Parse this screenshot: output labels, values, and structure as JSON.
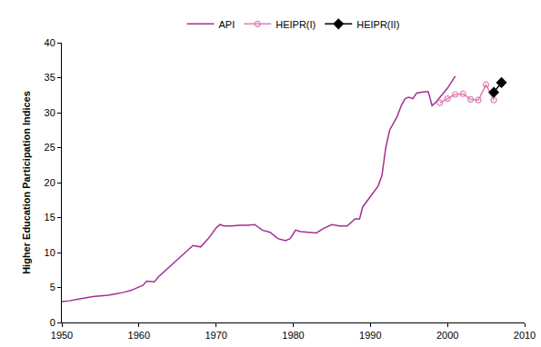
{
  "chart_data": {
    "type": "line",
    "y_label": "Higher Education Participation Indices",
    "xlim": [
      1950,
      2010
    ],
    "xticks": [
      1950,
      1960,
      1970,
      1980,
      1990,
      2000,
      2010
    ],
    "ylim": [
      0,
      40
    ],
    "yticks": [
      0,
      5,
      10,
      15,
      20,
      25,
      30,
      35,
      40
    ],
    "grid": false,
    "legend": "top",
    "series": [
      {
        "name": "API",
        "color": "#a3308f",
        "line_style": "solid",
        "marker": "none",
        "x": [
          1950,
          1951,
          1952,
          1953,
          1954,
          1955,
          1956,
          1957,
          1958,
          1959,
          1960,
          1960.5,
          1961,
          1962,
          1962.5,
          1963,
          1964,
          1965,
          1966,
          1967,
          1968,
          1969,
          1970,
          1970.5,
          1971,
          1972,
          1973,
          1974,
          1975,
          1976,
          1977,
          1978,
          1979,
          1979.6,
          1980.3,
          1981,
          1982,
          1983,
          1984,
          1985,
          1986,
          1987,
          1988,
          1988.6,
          1989,
          1990,
          1991,
          1991.5,
          1992,
          1992.5,
          1993,
          1993.5,
          1994,
          1994.5,
          1995,
          1995.5,
          1996,
          1997,
          1997.5,
          1998,
          1998.5,
          1999,
          2000,
          2001
        ],
        "values": [
          3.0,
          3.1,
          3.3,
          3.5,
          3.7,
          3.8,
          3.9,
          4.1,
          4.3,
          4.6,
          5.0,
          5.3,
          5.9,
          5.8,
          6.5,
          7.0,
          8.0,
          9.0,
          10.0,
          11.0,
          10.8,
          12.0,
          13.5,
          14.0,
          13.8,
          13.8,
          13.9,
          13.9,
          14.0,
          13.2,
          12.9,
          12.0,
          11.7,
          12.0,
          13.2,
          13.0,
          12.9,
          12.8,
          13.5,
          14.0,
          13.8,
          13.8,
          14.8,
          14.8,
          16.5,
          18.0,
          19.5,
          21.0,
          25.0,
          27.5,
          28.5,
          29.5,
          31.0,
          32.0,
          32.2,
          32.0,
          32.8,
          33.0,
          33.0,
          31.0,
          31.5,
          32.2,
          33.5,
          35.2
        ]
      },
      {
        "name": "HEIPR(I)",
        "color": "#e07fb4",
        "line_style": "solid",
        "marker": "circle-open",
        "x": [
          1999,
          2000,
          2001,
          2002,
          2003,
          2004,
          2005,
          2006
        ],
        "values": [
          31.4,
          32.0,
          32.6,
          32.7,
          31.9,
          31.8,
          34.0,
          31.8
        ]
      },
      {
        "name": "HEIPR(II)",
        "color": "#000000",
        "line_style": "solid",
        "marker": "diamond",
        "x": [
          2006,
          2007
        ],
        "values": [
          32.9,
          34.3
        ]
      }
    ]
  }
}
